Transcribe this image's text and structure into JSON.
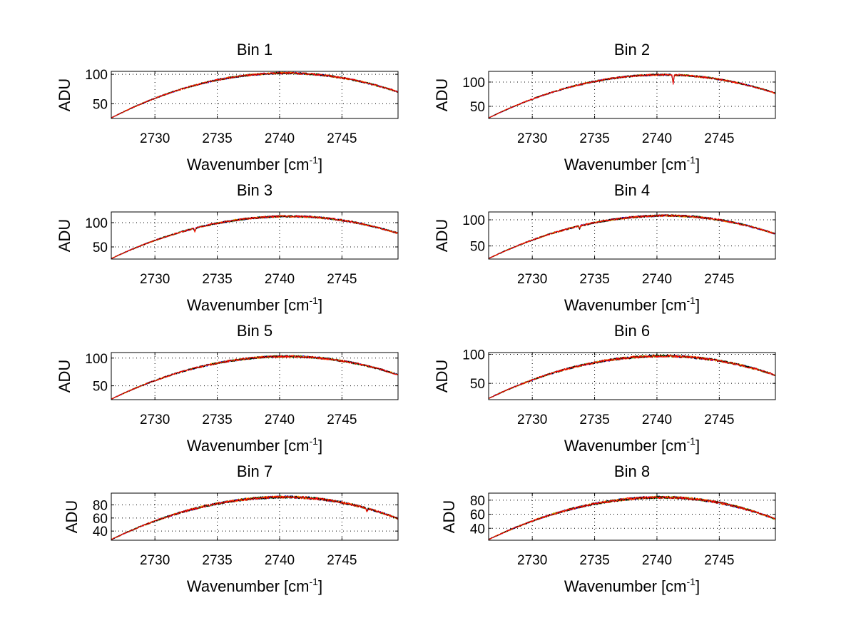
{
  "colors": {
    "background": "#ffffff",
    "axis": "#000000",
    "grid": "#000000",
    "series": [
      "#0000ff",
      "#008000",
      "#ffa500",
      "#000000",
      "#ff0000"
    ]
  },
  "chart_data": [
    {
      "type": "line",
      "title": "Bin 1",
      "xlabel": "Wavenumber [cm",
      "xlabel_sup": "-1",
      "xlabel_close": "]",
      "ylabel": "ADU",
      "xlim": [
        2726.5,
        2749.5
      ],
      "ylim": [
        25,
        105
      ],
      "xticks": [
        2730,
        2735,
        2740,
        2745
      ],
      "xtick_labels": [
        "2730",
        "2735",
        "2740",
        "2745"
      ],
      "yticks": [
        50,
        100
      ],
      "ytick_labels": [
        "50",
        "100"
      ],
      "grid": true,
      "peak_x": 2740.5,
      "peak_y": 102,
      "start_y": 26,
      "end_y": 70,
      "noise": 1.3,
      "dips": []
    },
    {
      "type": "line",
      "title": "Bin 2",
      "xlabel": "Wavenumber [cm",
      "xlabel_sup": "-1",
      "xlabel_close": "]",
      "ylabel": "ADU",
      "xlim": [
        2726.5,
        2749.5
      ],
      "ylim": [
        25,
        122
      ],
      "xticks": [
        2730,
        2735,
        2740,
        2745
      ],
      "xtick_labels": [
        "2730",
        "2735",
        "2740",
        "2745"
      ],
      "yticks": [
        50,
        100
      ],
      "ytick_labels": [
        "50",
        "100"
      ],
      "grid": true,
      "peak_x": 2740.5,
      "peak_y": 115,
      "start_y": 26,
      "end_y": 77,
      "noise": 1.5,
      "dips": [
        [
          2741.3,
          18
        ]
      ]
    },
    {
      "type": "line",
      "title": "Bin 3",
      "xlabel": "Wavenumber [cm",
      "xlabel_sup": "-1",
      "xlabel_close": "]",
      "ylabel": "ADU",
      "xlim": [
        2726.5,
        2749.5
      ],
      "ylim": [
        25,
        122
      ],
      "xticks": [
        2730,
        2735,
        2740,
        2745
      ],
      "xtick_labels": [
        "2730",
        "2735",
        "2740",
        "2745"
      ],
      "yticks": [
        50,
        100
      ],
      "ytick_labels": [
        "50",
        "100"
      ],
      "grid": true,
      "peak_x": 2740.8,
      "peak_y": 113,
      "start_y": 26,
      "end_y": 78,
      "noise": 1.6,
      "dips": [
        [
          2733.2,
          7
        ]
      ]
    },
    {
      "type": "line",
      "title": "Bin 4",
      "xlabel": "Wavenumber [cm",
      "xlabel_sup": "-1",
      "xlabel_close": "]",
      "ylabel": "ADU",
      "xlim": [
        2726.5,
        2749.5
      ],
      "ylim": [
        25,
        115
      ],
      "xticks": [
        2730,
        2735,
        2740,
        2745
      ],
      "xtick_labels": [
        "2730",
        "2735",
        "2740",
        "2745"
      ],
      "yticks": [
        50,
        100
      ],
      "ytick_labels": [
        "50",
        "100"
      ],
      "grid": true,
      "peak_x": 2740.8,
      "peak_y": 108,
      "start_y": 26,
      "end_y": 73,
      "noise": 1.5,
      "dips": [
        [
          2733.8,
          5
        ]
      ]
    },
    {
      "type": "line",
      "title": "Bin 5",
      "xlabel": "Wavenumber [cm",
      "xlabel_sup": "-1",
      "xlabel_close": "]",
      "ylabel": "ADU",
      "xlim": [
        2726.5,
        2749.5
      ],
      "ylim": [
        25,
        110
      ],
      "xticks": [
        2730,
        2735,
        2740,
        2745
      ],
      "xtick_labels": [
        "2730",
        "2735",
        "2740",
        "2745"
      ],
      "yticks": [
        50,
        100
      ],
      "ytick_labels": [
        "50",
        "100"
      ],
      "grid": true,
      "peak_x": 2740.6,
      "peak_y": 103,
      "start_y": 26,
      "end_y": 70,
      "noise": 1.5,
      "dips": []
    },
    {
      "type": "line",
      "title": "Bin 6",
      "xlabel": "Wavenumber [cm",
      "xlabel_sup": "-1",
      "xlabel_close": "]",
      "ylabel": "ADU",
      "xlim": [
        2726.5,
        2749.5
      ],
      "ylim": [
        22,
        103
      ],
      "xticks": [
        2730,
        2735,
        2740,
        2745
      ],
      "xtick_labels": [
        "2730",
        "2735",
        "2740",
        "2745"
      ],
      "yticks": [
        50,
        100
      ],
      "ytick_labels": [
        "50",
        "100"
      ],
      "grid": true,
      "peak_x": 2740.5,
      "peak_y": 97,
      "start_y": 24,
      "end_y": 64,
      "noise": 1.6,
      "dips": []
    },
    {
      "type": "line",
      "title": "Bin 7",
      "xlabel": "Wavenumber [cm",
      "xlabel_sup": "-1",
      "xlabel_close": "]",
      "ylabel": "ADU",
      "xlim": [
        2726.5,
        2749.5
      ],
      "ylim": [
        26,
        98
      ],
      "xticks": [
        2730,
        2735,
        2740,
        2745
      ],
      "xtick_labels": [
        "2730",
        "2735",
        "2740",
        "2745"
      ],
      "yticks": [
        40,
        60,
        80
      ],
      "ytick_labels": [
        "40",
        "60",
        "80"
      ],
      "grid": true,
      "peak_x": 2740.5,
      "peak_y": 92,
      "start_y": 27,
      "end_y": 59,
      "noise": 1.5,
      "dips": [
        [
          2747.0,
          6
        ]
      ]
    },
    {
      "type": "line",
      "title": "Bin 8",
      "xlabel": "Wavenumber [cm",
      "xlabel_sup": "-1",
      "xlabel_close": "]",
      "ylabel": "ADU",
      "xlim": [
        2726.5,
        2749.5
      ],
      "ylim": [
        23,
        90
      ],
      "xticks": [
        2730,
        2735,
        2740,
        2745
      ],
      "xtick_labels": [
        "2730",
        "2735",
        "2740",
        "2745"
      ],
      "yticks": [
        40,
        60,
        80
      ],
      "ytick_labels": [
        "40",
        "60",
        "80"
      ],
      "grid": true,
      "peak_x": 2740.5,
      "peak_y": 84,
      "start_y": 24,
      "end_y": 53,
      "noise": 1.4,
      "dips": []
    }
  ]
}
